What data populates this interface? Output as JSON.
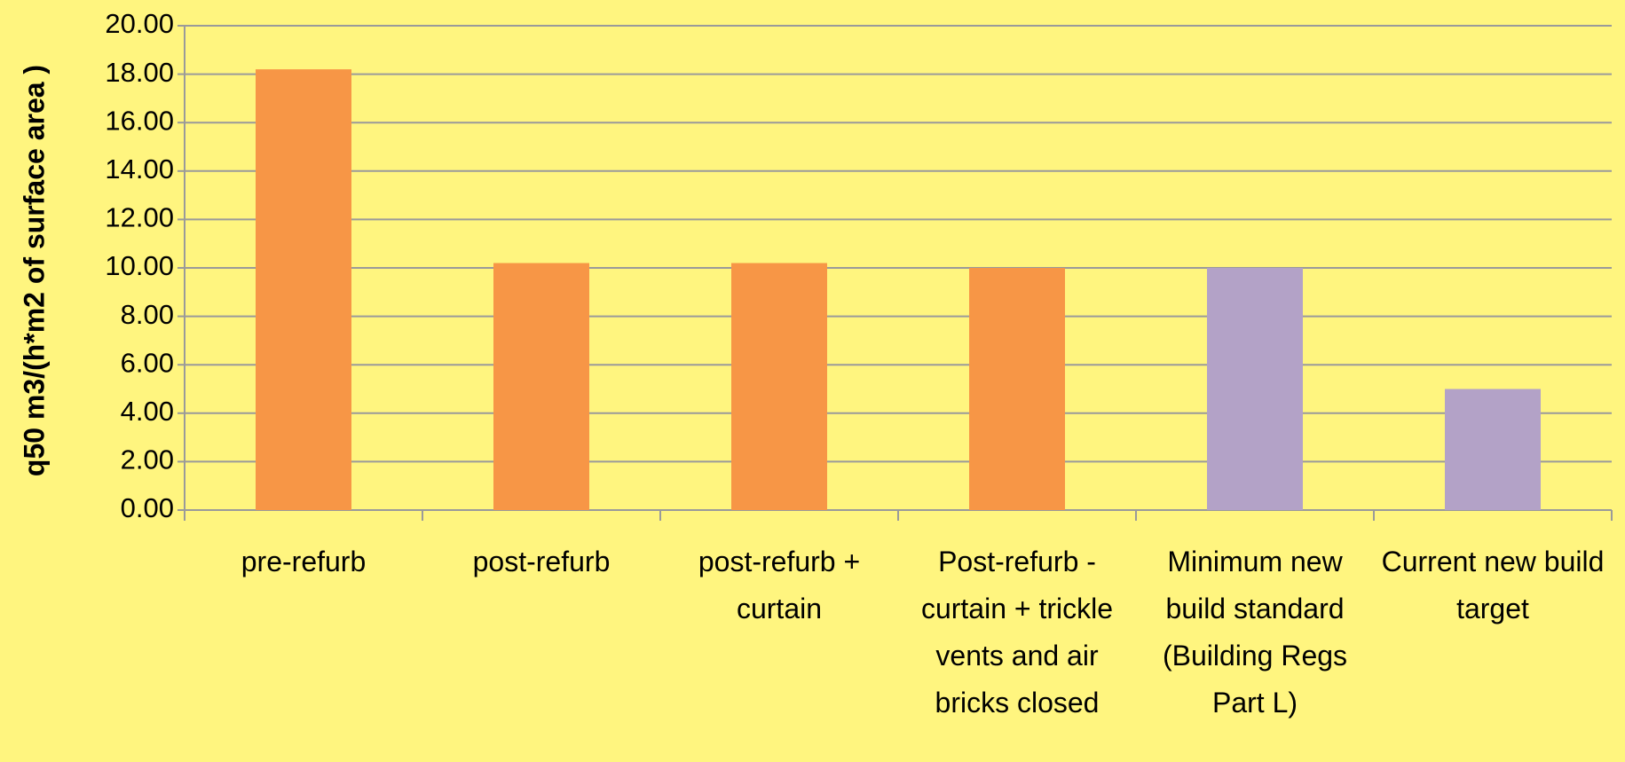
{
  "chart_data": {
    "type": "bar",
    "ylabel": "q50 m3/(h*m2 of surface area )",
    "categories": [
      "pre-refurb",
      "post-refurb",
      "post-refurb + curtain",
      "Post-refurb - curtain + trickle vents and air bricks closed",
      "Minimum new build standard (Building Regs Part L)",
      "Current new build target"
    ],
    "values": [
      18.2,
      10.2,
      10.2,
      10.0,
      10.0,
      5.0
    ],
    "colors": [
      "#f79646",
      "#f79646",
      "#f79646",
      "#f79646",
      "#b3a2c7",
      "#b3a2c7"
    ],
    "ylim": [
      0,
      20
    ],
    "yticks": [
      {
        "value": 0,
        "label": "0.00"
      },
      {
        "value": 2,
        "label": "2.00"
      },
      {
        "value": 4,
        "label": "4.00"
      },
      {
        "value": 6,
        "label": "6.00"
      },
      {
        "value": 8,
        "label": "8.00"
      },
      {
        "value": 10,
        "label": "10.00"
      },
      {
        "value": 12,
        "label": "12.00"
      },
      {
        "value": 14,
        "label": "14.00"
      },
      {
        "value": 16,
        "label": "16.00"
      },
      {
        "value": 18,
        "label": "18.00"
      },
      {
        "value": 20,
        "label": "20.00"
      }
    ],
    "grid": true
  }
}
